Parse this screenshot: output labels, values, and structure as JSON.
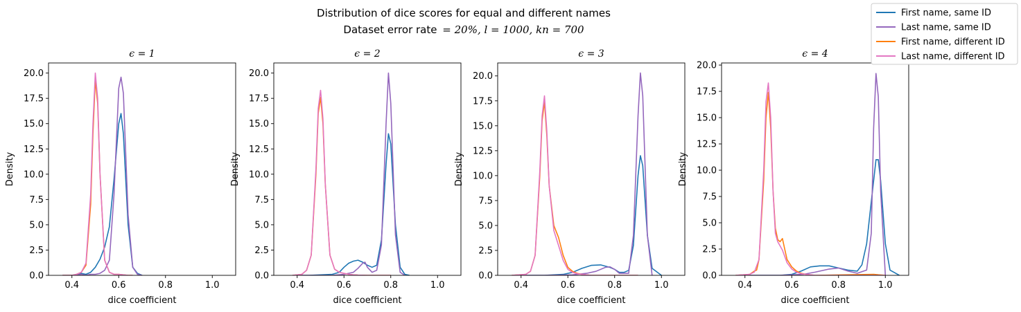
{
  "figure": {
    "title_line1": "Distribution of dice scores for equal and different names",
    "title_line2_prefix": "Dataset error rate",
    "title_line2_math": "= 20%,    l = 1000,    kn = 700"
  },
  "legend": {
    "placement": "upper-right",
    "entries": [
      {
        "label": "First name, same ID",
        "color": "#1f77b4"
      },
      {
        "label": "Last name, same ID",
        "color": "#9467bd"
      },
      {
        "label": "First name, different ID",
        "color": "#ff7f0e"
      },
      {
        "label": "Last name, different ID",
        "color": "#e377c2"
      }
    ]
  },
  "chart_data": [
    {
      "type": "line",
      "title": "ϵ = 1",
      "xlabel": "dice coefficient",
      "ylabel": "Density",
      "xlim": [
        0.3,
        1.1
      ],
      "ylim": [
        0,
        21
      ],
      "xticks": [
        0.4,
        0.6,
        0.8,
        1.0
      ],
      "xtick_labels": [
        "0.4",
        "0.6",
        "0.8",
        "1.0"
      ],
      "yticks": [
        0,
        2.5,
        5,
        7.5,
        10,
        12.5,
        15,
        17.5,
        20
      ],
      "ytick_labels": [
        "0.0",
        "2.5",
        "5.0",
        "7.5",
        "10.0",
        "12.5",
        "15.0",
        "17.5",
        "20.0"
      ],
      "series": [
        {
          "name": "First name, same ID",
          "color": "#1f77b4",
          "x": [
            0.36,
            0.4,
            0.42,
            0.44,
            0.46,
            0.48,
            0.5,
            0.52,
            0.54,
            0.56,
            0.58,
            0.6,
            0.61,
            0.62,
            0.64,
            0.66,
            0.68,
            0.7
          ],
          "y": [
            0,
            0,
            0.1,
            0.2,
            0.1,
            0.3,
            0.8,
            1.6,
            2.8,
            4.8,
            9.5,
            15.0,
            16.0,
            14.0,
            5.0,
            0.8,
            0.2,
            0
          ]
        },
        {
          "name": "Last name, same ID",
          "color": "#9467bd",
          "x": [
            0.36,
            0.4,
            0.42,
            0.44,
            0.46,
            0.48,
            0.5,
            0.52,
            0.54,
            0.56,
            0.58,
            0.6,
            0.61,
            0.62,
            0.64,
            0.66,
            0.68,
            0.7
          ],
          "y": [
            0,
            0,
            0,
            0.1,
            0,
            0.1,
            0.1,
            0.2,
            0.5,
            1.5,
            8.0,
            18.5,
            19.6,
            18.0,
            6.0,
            0.8,
            0.1,
            0
          ]
        },
        {
          "name": "First name, different ID",
          "color": "#ff7f0e",
          "x": [
            0.36,
            0.4,
            0.42,
            0.44,
            0.46,
            0.48,
            0.49,
            0.5,
            0.51,
            0.52,
            0.54,
            0.56,
            0.58,
            0.6,
            0.62,
            0.64,
            0.66
          ],
          "y": [
            0,
            0,
            0.1,
            0.3,
            1.0,
            7.0,
            14.0,
            19.3,
            17.0,
            10.0,
            1.5,
            0.3,
            0.1,
            0.1,
            0.05,
            0,
            0
          ]
        },
        {
          "name": "Last name, different ID",
          "color": "#e377c2",
          "x": [
            0.36,
            0.4,
            0.42,
            0.44,
            0.46,
            0.48,
            0.49,
            0.5,
            0.51,
            0.52,
            0.54,
            0.56,
            0.58,
            0.6,
            0.62,
            0.64,
            0.66
          ],
          "y": [
            0,
            0,
            0.1,
            0.3,
            1.2,
            8.0,
            15.0,
            20.0,
            17.5,
            10.0,
            1.5,
            0.3,
            0.1,
            0.1,
            0.05,
            0,
            0
          ]
        }
      ]
    },
    {
      "type": "line",
      "title": "ϵ = 2",
      "xlabel": "dice coefficient",
      "ylabel": "Density",
      "xlim": [
        0.3,
        1.1
      ],
      "ylim": [
        0,
        21
      ],
      "xticks": [
        0.4,
        0.6,
        0.8,
        1.0
      ],
      "xtick_labels": [
        "0.4",
        "0.6",
        "0.8",
        "1.0"
      ],
      "yticks": [
        0,
        2.5,
        5,
        7.5,
        10,
        12.5,
        15,
        17.5,
        20
      ],
      "ytick_labels": [
        "0.0",
        "2.5",
        "5.0",
        "7.5",
        "10.0",
        "12.5",
        "15.0",
        "17.5",
        "20.0"
      ],
      "series": [
        {
          "name": "First name, same ID",
          "color": "#1f77b4",
          "x": [
            0.38,
            0.45,
            0.55,
            0.58,
            0.6,
            0.62,
            0.64,
            0.66,
            0.68,
            0.7,
            0.72,
            0.74,
            0.76,
            0.78,
            0.79,
            0.8,
            0.82,
            0.84,
            0.86,
            0.88
          ],
          "y": [
            0,
            0,
            0.1,
            0.3,
            0.8,
            1.2,
            1.4,
            1.5,
            1.3,
            1.0,
            0.8,
            1.0,
            3.5,
            11.0,
            14.0,
            13.0,
            5.0,
            0.8,
            0.1,
            0
          ]
        },
        {
          "name": "Last name, same ID",
          "color": "#9467bd",
          "x": [
            0.38,
            0.45,
            0.55,
            0.6,
            0.64,
            0.66,
            0.68,
            0.69,
            0.7,
            0.72,
            0.74,
            0.76,
            0.78,
            0.79,
            0.8,
            0.82,
            0.84,
            0.86
          ],
          "y": [
            0,
            0,
            0,
            0.1,
            0.3,
            0.7,
            1.2,
            1.3,
            0.8,
            0.3,
            0.5,
            3.0,
            15.0,
            20.0,
            17.0,
            4.0,
            0.3,
            0
          ]
        },
        {
          "name": "First name, different ID",
          "color": "#ff7f0e",
          "x": [
            0.38,
            0.42,
            0.44,
            0.46,
            0.48,
            0.49,
            0.5,
            0.51,
            0.52,
            0.54,
            0.56,
            0.58,
            0.6,
            0.62,
            0.64,
            0.66,
            0.7,
            0.8
          ],
          "y": [
            0,
            0.1,
            0.5,
            2.0,
            10.0,
            16.0,
            17.6,
            15.0,
            9.0,
            2.0,
            0.6,
            0.3,
            0.2,
            0.1,
            0.05,
            0.02,
            0,
            0
          ]
        },
        {
          "name": "Last name, different ID",
          "color": "#e377c2",
          "x": [
            0.38,
            0.42,
            0.44,
            0.46,
            0.48,
            0.49,
            0.5,
            0.51,
            0.52,
            0.54,
            0.56,
            0.58,
            0.6,
            0.62,
            0.64,
            0.66,
            0.7,
            0.8
          ],
          "y": [
            0,
            0.1,
            0.5,
            2.0,
            10.5,
            16.5,
            18.3,
            15.5,
            9.0,
            2.0,
            0.6,
            0.3,
            0.2,
            0.1,
            0.05,
            0.02,
            0,
            0
          ]
        }
      ]
    },
    {
      "type": "line",
      "title": "ϵ = 3",
      "xlabel": "dice coefficient",
      "ylabel": "Density",
      "xlim": [
        0.3,
        1.1
      ],
      "ylim": [
        0,
        21.3
      ],
      "xticks": [
        0.4,
        0.6,
        0.8,
        1.0
      ],
      "xtick_labels": [
        "0.4",
        "0.6",
        "0.8",
        "1.0"
      ],
      "yticks": [
        0,
        2.5,
        5,
        7.5,
        10,
        12.5,
        15,
        17.5,
        20
      ],
      "ytick_labels": [
        "0.0",
        "2.5",
        "5.0",
        "7.5",
        "10.0",
        "12.5",
        "15.0",
        "17.5",
        "20.0"
      ],
      "series": [
        {
          "name": "First name, same ID",
          "color": "#1f77b4",
          "x": [
            0.38,
            0.5,
            0.58,
            0.62,
            0.66,
            0.7,
            0.74,
            0.78,
            0.8,
            0.82,
            0.84,
            0.86,
            0.88,
            0.9,
            0.91,
            0.92,
            0.94,
            0.96,
            1.0
          ],
          "y": [
            0,
            0,
            0.1,
            0.3,
            0.7,
            1.0,
            1.05,
            0.8,
            0.6,
            0.3,
            0.3,
            0.5,
            3.0,
            10.0,
            12.0,
            11.0,
            4.0,
            0.7,
            0
          ]
        },
        {
          "name": "Last name, same ID",
          "color": "#9467bd",
          "x": [
            0.38,
            0.5,
            0.62,
            0.68,
            0.72,
            0.76,
            0.78,
            0.8,
            0.82,
            0.86,
            0.88,
            0.9,
            0.91,
            0.92,
            0.94,
            0.96
          ],
          "y": [
            0,
            0,
            0.05,
            0.2,
            0.4,
            0.8,
            0.85,
            0.6,
            0.2,
            0.2,
            4.0,
            16.0,
            20.3,
            18.0,
            4.0,
            0
          ]
        },
        {
          "name": "First name, different ID",
          "color": "#ff7f0e",
          "x": [
            0.36,
            0.42,
            0.44,
            0.46,
            0.48,
            0.49,
            0.5,
            0.51,
            0.52,
            0.54,
            0.56,
            0.58,
            0.6,
            0.62,
            0.64,
            0.66,
            0.7,
            0.9
          ],
          "y": [
            0,
            0.1,
            0.4,
            2.0,
            10.0,
            15.5,
            17.4,
            14.0,
            9.0,
            5.0,
            3.8,
            2.0,
            0.8,
            0.4,
            0.2,
            0.1,
            0,
            0
          ]
        },
        {
          "name": "Last name, different ID",
          "color": "#e377c2",
          "x": [
            0.36,
            0.42,
            0.44,
            0.46,
            0.48,
            0.49,
            0.5,
            0.51,
            0.52,
            0.54,
            0.56,
            0.58,
            0.6,
            0.62,
            0.64,
            0.66,
            0.7,
            0.9
          ],
          "y": [
            0,
            0.1,
            0.4,
            2.0,
            10.5,
            16.0,
            18.0,
            14.5,
            9.0,
            4.5,
            3.0,
            1.5,
            0.6,
            0.3,
            0.15,
            0.1,
            0,
            0
          ]
        }
      ]
    },
    {
      "type": "line",
      "title": "ϵ = 4",
      "xlabel": "dice coefficient",
      "ylabel": "Density",
      "xlim": [
        0.3,
        1.1
      ],
      "ylim": [
        0,
        20.2
      ],
      "xticks": [
        0.4,
        0.6,
        0.8,
        1.0
      ],
      "xtick_labels": [
        "0.4",
        "0.6",
        "0.8",
        "1.0"
      ],
      "yticks": [
        0,
        2.5,
        5,
        7.5,
        10,
        12.5,
        15,
        17.5,
        20
      ],
      "ytick_labels": [
        "0.0",
        "2.5",
        "5.0",
        "7.5",
        "10.0",
        "12.5",
        "15.0",
        "17.5",
        "20.0"
      ],
      "series": [
        {
          "name": "First name, same ID",
          "color": "#1f77b4",
          "x": [
            0.38,
            0.55,
            0.6,
            0.64,
            0.68,
            0.72,
            0.76,
            0.8,
            0.84,
            0.88,
            0.9,
            0.92,
            0.94,
            0.96,
            0.97,
            0.98,
            1.0,
            1.02,
            1.06
          ],
          "y": [
            0,
            0,
            0.1,
            0.4,
            0.8,
            0.9,
            0.9,
            0.7,
            0.5,
            0.4,
            1.0,
            3.0,
            7.0,
            11.0,
            11.0,
            9.0,
            3.0,
            0.5,
            0
          ]
        },
        {
          "name": "Last name, same ID",
          "color": "#9467bd",
          "x": [
            0.38,
            0.55,
            0.65,
            0.7,
            0.76,
            0.8,
            0.84,
            0.88,
            0.92,
            0.94,
            0.95,
            0.96,
            0.97,
            0.98,
            1.0
          ],
          "y": [
            0,
            0,
            0.1,
            0.3,
            0.6,
            0.7,
            0.4,
            0.2,
            0.5,
            4.0,
            14.0,
            19.2,
            17.0,
            8.0,
            0
          ]
        },
        {
          "name": "First name, different ID",
          "color": "#ff7f0e",
          "x": [
            0.36,
            0.42,
            0.44,
            0.45,
            0.46,
            0.48,
            0.49,
            0.5,
            0.51,
            0.52,
            0.53,
            0.54,
            0.55,
            0.56,
            0.57,
            0.58,
            0.6,
            0.62,
            0.64,
            0.66,
            0.7,
            0.95,
            0.97,
            1.0
          ],
          "y": [
            0,
            0.1,
            0.4,
            0.5,
            1.5,
            9.0,
            15.0,
            17.4,
            14.0,
            8.0,
            4.5,
            3.4,
            3.2,
            3.5,
            2.5,
            1.5,
            0.8,
            0.4,
            0.2,
            0.1,
            0,
            0.1,
            0.05,
            0
          ]
        },
        {
          "name": "Last name, different ID",
          "color": "#e377c2",
          "x": [
            0.36,
            0.42,
            0.44,
            0.46,
            0.48,
            0.49,
            0.5,
            0.51,
            0.52,
            0.53,
            0.54,
            0.55,
            0.56,
            0.58,
            0.6,
            0.62,
            0.64,
            0.66,
            0.7,
            1.0
          ],
          "y": [
            0,
            0.1,
            0.3,
            1.5,
            10.0,
            16.5,
            18.3,
            15.0,
            8.0,
            4.0,
            3.2,
            2.8,
            2.4,
            1.2,
            0.6,
            0.3,
            0.15,
            0.1,
            0,
            0
          ]
        }
      ]
    }
  ]
}
